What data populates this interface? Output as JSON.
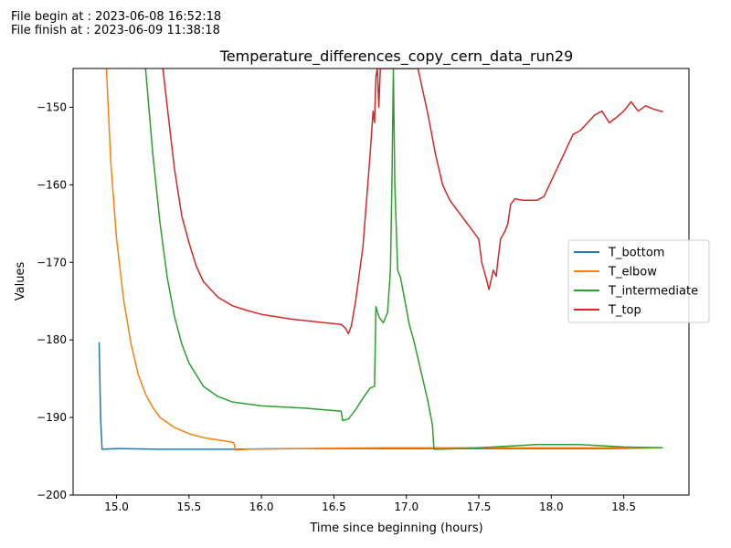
{
  "header": {
    "begin": "File begin at : 2023-06-08 16:52:18",
    "finish": "File finish at : 2023-06-09 11:38:18"
  },
  "chart_data": {
    "type": "line",
    "title": "Temperature_differences_copy_cern_data_run29",
    "xlabel": "Time since beginning (hours)",
    "ylabel": "Values",
    "xlim": [
      14.7,
      18.95
    ],
    "ylim": [
      -200,
      -145
    ],
    "xticks": [
      15.0,
      15.5,
      16.0,
      16.5,
      17.0,
      17.5,
      18.0,
      18.5
    ],
    "xtick_labels": [
      "15.0",
      "15.5",
      "16.0",
      "16.5",
      "17.0",
      "17.5",
      "18.0",
      "18.5"
    ],
    "yticks": [
      -200,
      -190,
      -180,
      -170,
      -160,
      -150
    ],
    "ytick_labels": [
      "−200",
      "−190",
      "−180",
      "−170",
      "−160",
      "−150"
    ],
    "legend_position": "center-right",
    "series": [
      {
        "name": "T_bottom",
        "color": "#1f77b4",
        "x": [
          14.88,
          14.89,
          14.9,
          14.91,
          15.0,
          15.3,
          15.8,
          16.2,
          16.6,
          17.0,
          17.2,
          17.6,
          18.0,
          18.4,
          18.77
        ],
        "y": [
          -180.3,
          -190.0,
          -194.1,
          -194.1,
          -194.0,
          -194.1,
          -194.1,
          -194.0,
          -194.0,
          -194.0,
          -194.0,
          -194.0,
          -194.0,
          -194.0,
          -193.9
        ]
      },
      {
        "name": "T_elbow",
        "color": "#ff7f0e",
        "x": [
          14.93,
          14.96,
          15.0,
          15.05,
          15.1,
          15.15,
          15.2,
          15.25,
          15.3,
          15.4,
          15.5,
          15.6,
          15.7,
          15.8,
          15.81,
          15.82,
          15.9,
          16.3,
          16.8,
          17.3,
          17.8,
          18.3,
          18.77
        ],
        "y": [
          -145,
          -157,
          -167,
          -175,
          -180.5,
          -184.5,
          -187,
          -188.7,
          -190,
          -191.3,
          -192.1,
          -192.6,
          -192.9,
          -193.2,
          -193.3,
          -194.2,
          -194.1,
          -194.0,
          -193.9,
          -193.9,
          -193.9,
          -193.9,
          -193.9
        ]
      },
      {
        "name": "T_intermediate",
        "color": "#2ca02c",
        "x": [
          15.2,
          15.25,
          15.3,
          15.35,
          15.4,
          15.45,
          15.5,
          15.6,
          15.7,
          15.8,
          16.0,
          16.3,
          16.55,
          16.56,
          16.6,
          16.65,
          16.7,
          16.75,
          16.78,
          16.79,
          16.81,
          16.84,
          16.87,
          16.89,
          16.9,
          16.91,
          16.92,
          16.94,
          16.96,
          16.99,
          17.02,
          17.05,
          17.1,
          17.15,
          17.18,
          17.19,
          17.2,
          17.4,
          17.6,
          17.9,
          18.2,
          18.5,
          18.77
        ],
        "y": [
          -145,
          -156,
          -165,
          -172,
          -177,
          -180.5,
          -183,
          -186,
          -187.3,
          -188,
          -188.5,
          -188.8,
          -189.2,
          -190.4,
          -190.2,
          -189,
          -187.5,
          -186.2,
          -186,
          -175.7,
          -177,
          -177.8,
          -176.5,
          -171,
          -160,
          -145,
          -160,
          -171,
          -172,
          -175,
          -178,
          -180,
          -184,
          -188,
          -191,
          -194.1,
          -194.1,
          -194.0,
          -193.8,
          -193.5,
          -193.5,
          -193.8,
          -193.9
        ]
      },
      {
        "name": "T_top",
        "color": "#d62728",
        "x": [
          15.32,
          15.35,
          15.4,
          15.45,
          15.5,
          15.55,
          15.6,
          15.7,
          15.8,
          15.9,
          16.0,
          16.2,
          16.4,
          16.55,
          16.58,
          16.6,
          16.62,
          16.65,
          16.7,
          16.75,
          16.77,
          16.78,
          16.79,
          16.8,
          16.81,
          16.82,
          16.85,
          16.87,
          17.08,
          17.15,
          17.2,
          17.25,
          17.3,
          17.4,
          17.5,
          17.52,
          17.55,
          17.57,
          17.6,
          17.62,
          17.63,
          17.65,
          17.68,
          17.7,
          17.72,
          17.75,
          17.8,
          17.9,
          17.95,
          18.0,
          18.05,
          18.1,
          18.15,
          18.2,
          18.3,
          18.35,
          18.4,
          18.45,
          18.5,
          18.55,
          18.6,
          18.65,
          18.7,
          18.77
        ],
        "y": [
          -145,
          -150,
          -158,
          -164,
          -167.5,
          -170.5,
          -172.5,
          -174.5,
          -175.6,
          -176.2,
          -176.7,
          -177.3,
          -177.7,
          -178,
          -178.5,
          -179.2,
          -178.2,
          -175,
          -168,
          -156,
          -150.5,
          -152,
          -146,
          -145,
          -150,
          -145,
          -145,
          -145,
          -145,
          -151,
          -156,
          -160,
          -162,
          -164.5,
          -167,
          -170,
          -172,
          -173.5,
          -171,
          -171.8,
          -170,
          -167,
          -166,
          -165,
          -162.5,
          -161.8,
          -162,
          -162,
          -161.5,
          -159.5,
          -157.5,
          -155.5,
          -153.5,
          -153,
          -151,
          -150.5,
          -152,
          -151.3,
          -150.5,
          -149.3,
          -150.5,
          -149.8,
          -150.2,
          -150.6
        ]
      }
    ]
  }
}
